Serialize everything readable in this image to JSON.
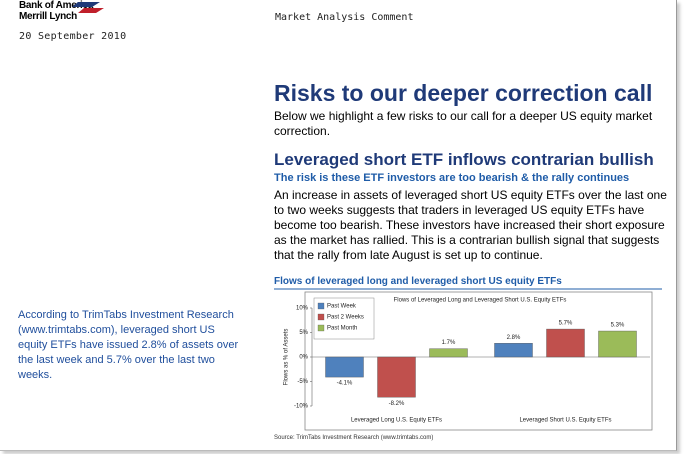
{
  "header": {
    "logo": [
      "Bank of America",
      "Merrill Lynch"
    ],
    "date": "20 September 2010",
    "section": "Market Analysis Comment"
  },
  "sidebar": "According to TrimTabs Investment Research (www.trimtabs.com), leveraged short US equity ETFs have issued 2.8% of assets over the last week and 5.7% over the last two weeks.",
  "article": {
    "title": "Risks to our deeper correction call",
    "intro": "Below we highlight a few risks to our call for a deeper US equity market correction.",
    "subtitle": "Leveraged short ETF inflows contrarian bullish",
    "tagline": "The risk is these ETF investors are too bearish & the rally continues",
    "body": "An increase in assets of leveraged short US equity ETFs over the last one to two weeks suggests that traders in leveraged US equity ETFs have become too bearish. These investors have increased their short exposure as the market has rallied. This is a contrarian bullish signal that suggests that the rally from late August is set up to continue."
  },
  "figure": {
    "caption": "Flows of leveraged long and leveraged short US equity ETFs",
    "source": "Source: TrimTabs Investment Research (www.trimtabs.com)",
    "chart_data": {
      "type": "bar",
      "title": "Flows of Leveraged Long and Leveraged Short U.S. Equity ETFs",
      "y_label": "Flows as % of Assets",
      "categories": [
        "Leveraged Long U.S. Equity ETFs",
        "Leveraged Short U.S. Equity ETFs"
      ],
      "series": [
        {
          "name": "Past Week",
          "color": "#4f81bd",
          "values": [
            -4.1,
            2.8
          ],
          "value_labels": [
            "-4.1%",
            "2.8%"
          ]
        },
        {
          "name": "Past 2 Weeks",
          "color": "#c0504d",
          "values": [
            -8.2,
            5.7
          ],
          "value_labels": [
            "-8.2%",
            "5.7%"
          ]
        },
        {
          "name": "Past Month",
          "color": "#9bbb59",
          "values": [
            1.7,
            5.3
          ],
          "value_labels": [
            "1.7%",
            "5.3%"
          ]
        }
      ],
      "ylim": [
        -10,
        10
      ],
      "yticks": [
        {
          "value": -10,
          "label": "-10%"
        },
        {
          "value": -5,
          "label": "-5%"
        },
        {
          "value": 0,
          "label": "0%"
        },
        {
          "value": 5,
          "label": "5%"
        },
        {
          "value": 10,
          "label": "10%"
        }
      ],
      "legend": "top-left"
    }
  }
}
